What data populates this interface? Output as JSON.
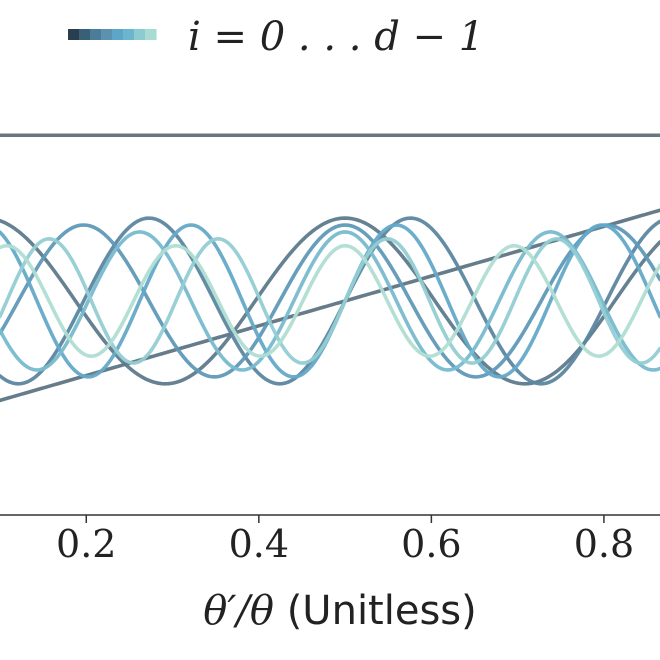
{
  "chart_data": {
    "type": "line",
    "title": "",
    "xlabel": "θ′/θ",
    "xlabel_unit": "(Unitless)",
    "ylabel": "",
    "xlim": [
      0.1,
      0.865
    ],
    "ylim": [
      -1.55,
      1.6
    ],
    "x_ticks": [
      0.2,
      0.4,
      0.6,
      0.8
    ],
    "x_tick_labels": [
      "0.2",
      "0.4",
      "0.6",
      "0.8"
    ],
    "grid": false,
    "legend": {
      "placement": "top-left",
      "label": "i = 0 . . . d − 1"
    },
    "colormap": [
      "#2b3e4f",
      "#3a5f79",
      "#4b7c98",
      "#5a92b0",
      "#5fa5c8",
      "#6bb5cf",
      "#8ccbd2",
      "#a8dcd2"
    ],
    "series": [
      {
        "i": 0,
        "color": "#5f6f79",
        "values": [
          1.2,
          1.2
        ]
      },
      {
        "i": 1,
        "color": "#5e7584",
        "values": [
          -0.9,
          0.9
        ]
      },
      {
        "i": 2,
        "color": "#5d7a8c",
        "values": [
          0.6,
          0.0,
          -0.6,
          0.0,
          0.6
        ]
      },
      {
        "i": 3,
        "color": "#5c87a0",
        "values": [
          0.6,
          0.0,
          -0.6,
          0.0,
          0.6
        ]
      },
      {
        "i": 4,
        "color": "#5e99b8",
        "values": [
          0.55,
          0.0,
          -0.55,
          0.0,
          0.55
        ]
      },
      {
        "i": 5,
        "color": "#64a9c8",
        "values": [
          0.55,
          0.0,
          -0.55,
          0.0,
          0.55
        ]
      },
      {
        "i": 6,
        "color": "#78bbcf",
        "values": [
          0.5,
          0.0,
          -0.5,
          0.0,
          0.5
        ]
      },
      {
        "i": 7,
        "color": "#93cdd3",
        "values": [
          0.45,
          0.0,
          -0.45,
          0.0,
          0.45
        ]
      },
      {
        "i": 8,
        "color": "#b0ddd3",
        "values": [
          0.4,
          0.0,
          -0.4,
          0.0,
          0.4
        ]
      }
    ]
  }
}
